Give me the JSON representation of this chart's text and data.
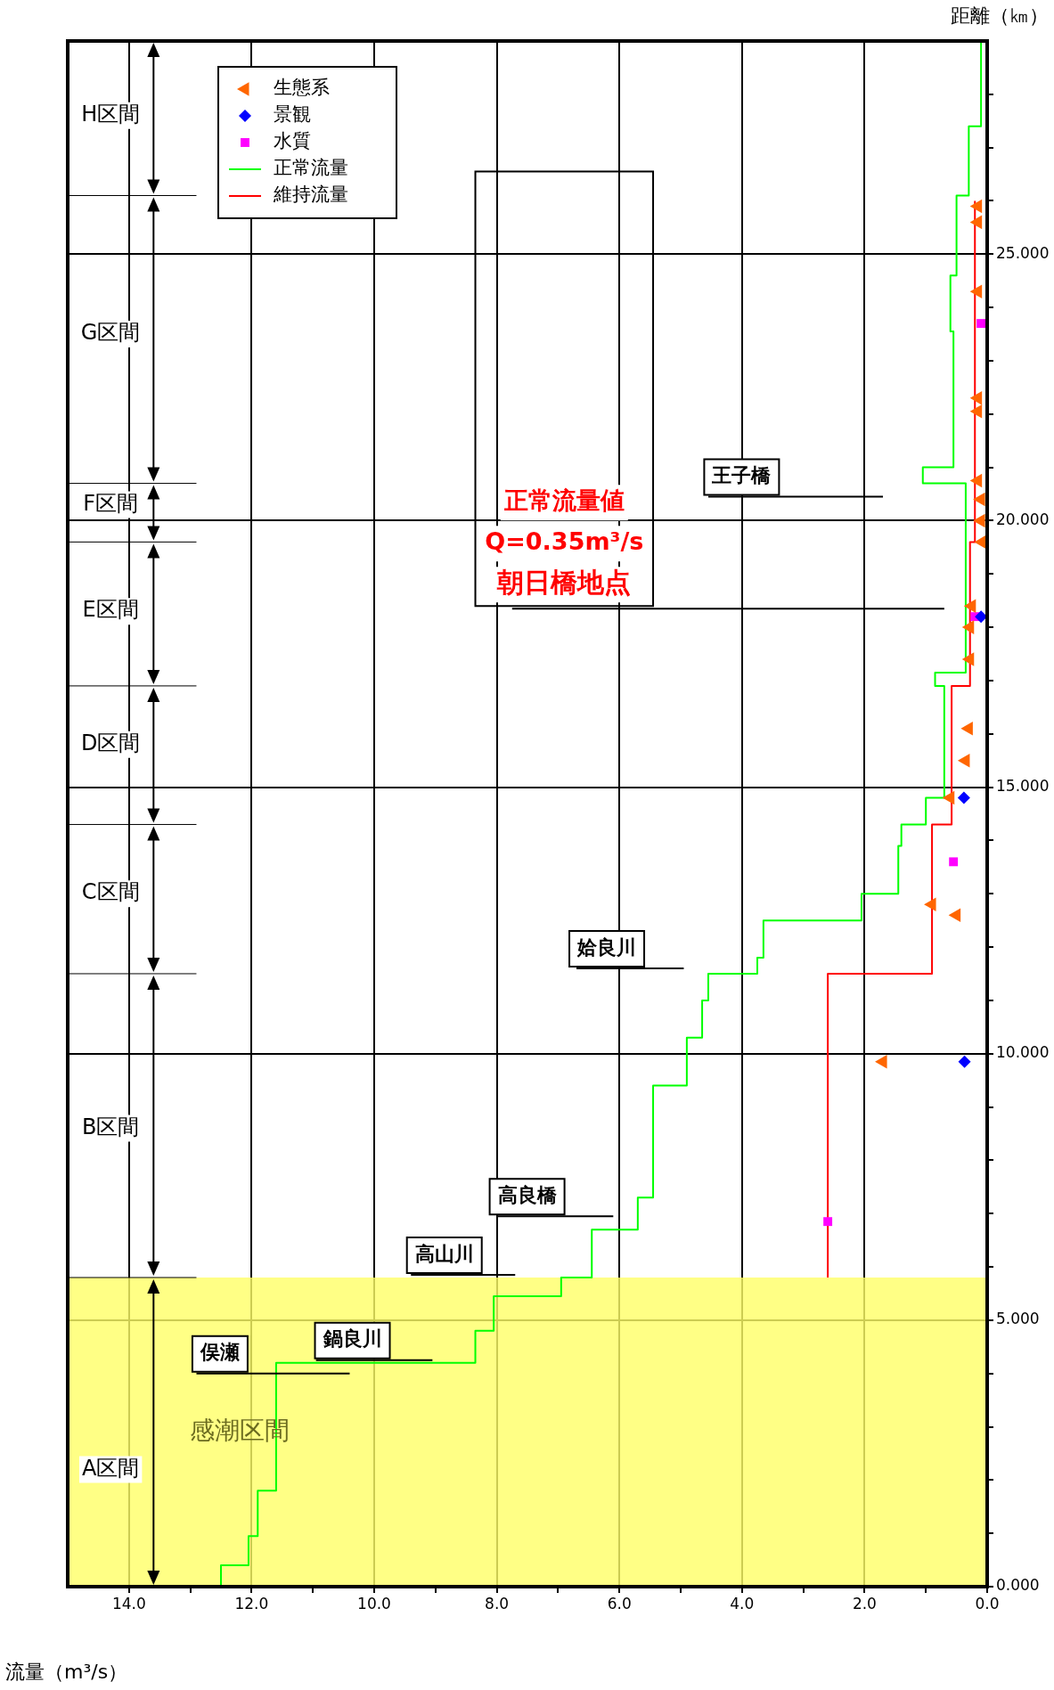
{
  "chart_data": {
    "type": "line",
    "orientation": "horizontal",
    "xlabel": "流量（m³/s）",
    "ylabel": "距離（㎞）",
    "xlim": [
      15,
      0
    ],
    "xticks": [
      {
        "value": 0,
        "label": "0.0"
      },
      {
        "value": 1,
        "label": null
      },
      {
        "value": 2,
        "label": "2.0"
      },
      {
        "value": 3,
        "label": null
      },
      {
        "value": 4,
        "label": "4.0"
      },
      {
        "value": 5,
        "label": null
      },
      {
        "value": 6,
        "label": "6.0"
      },
      {
        "value": 7,
        "label": null
      },
      {
        "value": 8,
        "label": "8.0"
      },
      {
        "value": 9,
        "label": null
      },
      {
        "value": 10,
        "label": "10.0"
      },
      {
        "value": 11,
        "label": null
      },
      {
        "value": 12,
        "label": "12.0"
      },
      {
        "value": 13,
        "label": null
      },
      {
        "value": 14,
        "label": "14.0"
      }
    ],
    "ylim": [
      0,
      29
    ],
    "yticks": [
      {
        "value": 0,
        "label": "0.000"
      },
      {
        "value": 1,
        "label": null
      },
      {
        "value": 2,
        "label": null
      },
      {
        "value": 3,
        "label": null
      },
      {
        "value": 4,
        "label": null
      },
      {
        "value": 5,
        "label": "5.000"
      },
      {
        "value": 6,
        "label": null
      },
      {
        "value": 7,
        "label": null
      },
      {
        "value": 8,
        "label": null
      },
      {
        "value": 9,
        "label": null
      },
      {
        "value": 10,
        "label": "10.000"
      },
      {
        "value": 11,
        "label": null
      },
      {
        "value": 12,
        "label": null
      },
      {
        "value": 13,
        "label": null
      },
      {
        "value": 14,
        "label": null
      },
      {
        "value": 15,
        "label": "15.000"
      },
      {
        "value": 16,
        "label": null
      },
      {
        "value": 17,
        "label": null
      },
      {
        "value": 18,
        "label": null
      },
      {
        "value": 19,
        "label": null
      },
      {
        "value": 20,
        "label": "20.000"
      },
      {
        "value": 21,
        "label": null
      },
      {
        "value": 22,
        "label": null
      },
      {
        "value": 23,
        "label": null
      },
      {
        "value": 24,
        "label": null
      },
      {
        "value": 25,
        "label": "25.000"
      },
      {
        "value": 26,
        "label": null
      },
      {
        "value": 27,
        "label": null
      },
      {
        "value": 28,
        "label": null
      }
    ],
    "grid": true,
    "legend": "top left",
    "series": [
      {
        "name": "生態系",
        "type": "scatter",
        "marker": "triangle",
        "color": "#ff6600",
        "x": [
          9.85,
          12.6,
          12.8,
          14.8,
          15.5,
          16.1,
          17.4,
          18.0,
          18.4,
          19.6,
          20.0,
          20.4,
          20.75,
          22.05,
          22.3,
          24.3,
          25.6,
          25.9
        ],
        "values": [
          1.7,
          0.5,
          0.9,
          0.6,
          0.35,
          0.3,
          0.28,
          0.28,
          0.25,
          0.08,
          0.1,
          0.1,
          0.15,
          0.15,
          0.15,
          0.15,
          0.15,
          0.15
        ]
      },
      {
        "name": "景観",
        "type": "scatter",
        "marker": "diamond",
        "color": "#0000ff",
        "x": [
          9.85,
          14.8,
          18.2
        ],
        "values": [
          0.37,
          0.38,
          0.1
        ]
      },
      {
        "name": "水質",
        "type": "scatter",
        "marker": "square",
        "color": "#ff00ff",
        "x": [
          6.85,
          13.6,
          18.2,
          23.7
        ],
        "values": [
          2.6,
          0.55,
          0.2,
          0.1
        ]
      },
      {
        "name": "正常流量",
        "type": "step",
        "color": "#00ff00",
        "x": [
          0,
          0.4,
          0.95,
          1.8,
          4.2,
          4.8,
          5.45,
          5.8,
          6.7,
          7.3,
          9.4,
          10.3,
          11.0,
          11.5,
          11.8,
          12.5,
          13.0,
          13.9,
          14.3,
          14.8,
          16.9,
          17.15,
          20.7,
          21.0,
          23.55,
          24.6,
          26.1,
          27.4,
          29
        ],
        "values": [
          12.5,
          12.05,
          11.9,
          11.6,
          8.35,
          8.05,
          6.95,
          6.45,
          5.7,
          5.45,
          4.9,
          4.65,
          4.55,
          3.75,
          3.65,
          2.05,
          1.45,
          1.4,
          1.0,
          0.7,
          0.85,
          0.35,
          1.05,
          0.55,
          0.6,
          0.5,
          0.3,
          0.1,
          0.1
        ]
      },
      {
        "name": "維持流量",
        "type": "step",
        "color": "#ff0000",
        "x": [
          5.8,
          11.5,
          14.3,
          16.9,
          19.6,
          26.0
        ],
        "values": [
          2.6,
          0.9,
          0.58,
          0.28,
          0.2,
          0.2
        ]
      }
    ],
    "bands": [
      {
        "axis": "y",
        "from": 0,
        "to": 5.8,
        "label": "感潮区間",
        "color": "#ffff66"
      }
    ],
    "ref_lines": [
      {
        "axis": "y",
        "value": 4.0,
        "label": "俣瀬"
      },
      {
        "axis": "y",
        "value": 4.25,
        "label": "鍋良川"
      },
      {
        "axis": "y",
        "value": 5.85,
        "label": "高山川"
      },
      {
        "axis": "y",
        "value": 6.95,
        "label": "高良橋"
      },
      {
        "axis": "y",
        "value": 11.6,
        "label": "姶良川"
      },
      {
        "axis": "y",
        "value": 18.35,
        "label": "朝日橋地点"
      },
      {
        "axis": "y",
        "value": 20.45,
        "label": "王子橋"
      },
      {
        "axis": "y",
        "value": 5.8
      },
      {
        "axis": "y",
        "value": 11.5
      },
      {
        "axis": "y",
        "value": 14.3
      },
      {
        "axis": "y",
        "value": 16.9
      },
      {
        "axis": "y",
        "value": 19.6
      },
      {
        "axis": "y",
        "value": 20.7
      },
      {
        "axis": "y",
        "value": 26.1
      }
    ],
    "annotations": [
      "A区間",
      "B区間",
      "C区間",
      "D区間",
      "E区間",
      "F区間",
      "G区間",
      "H区間",
      "正常流量値",
      "Q=0.35m³/s"
    ]
  }
}
